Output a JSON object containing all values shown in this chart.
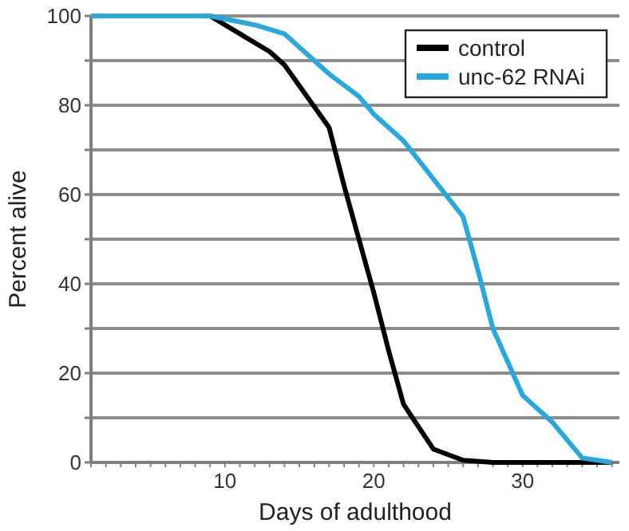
{
  "chart_data": {
    "type": "line",
    "xlabel": "Days of adulthood",
    "ylabel": "Percent alive",
    "xlim": [
      1,
      36.5
    ],
    "xticks": [
      {
        "value": 1,
        "label": null
      },
      {
        "value": 2,
        "label": null
      },
      {
        "value": 3,
        "label": null
      },
      {
        "value": 4,
        "label": null
      },
      {
        "value": 5,
        "label": null
      },
      {
        "value": 6,
        "label": null
      },
      {
        "value": 7,
        "label": null
      },
      {
        "value": 8,
        "label": null
      },
      {
        "value": 9,
        "label": null
      },
      10,
      {
        "value": 11,
        "label": null
      },
      {
        "value": 12,
        "label": null
      },
      {
        "value": 13,
        "label": null
      },
      {
        "value": 14,
        "label": null
      },
      {
        "value": 15,
        "label": null
      },
      {
        "value": 16,
        "label": null
      },
      {
        "value": 17,
        "label": null
      },
      {
        "value": 18,
        "label": null
      },
      {
        "value": 19,
        "label": null
      },
      20,
      {
        "value": 21,
        "label": null
      },
      {
        "value": 22,
        "label": null
      },
      {
        "value": 23,
        "label": null
      },
      {
        "value": 24,
        "label": null
      },
      {
        "value": 25,
        "label": null
      },
      {
        "value": 26,
        "label": null
      },
      {
        "value": 27,
        "label": null
      },
      {
        "value": 28,
        "label": null
      },
      {
        "value": 29,
        "label": null
      },
      30,
      {
        "value": 31,
        "label": null
      },
      {
        "value": 32,
        "label": null
      },
      {
        "value": 33,
        "label": null
      },
      {
        "value": 34,
        "label": null
      },
      {
        "value": 35,
        "label": null
      },
      {
        "value": 36,
        "label": null
      }
    ],
    "ylim": [
      0,
      100
    ],
    "yticks": [
      0,
      {
        "value": 10,
        "label": null
      },
      20,
      {
        "value": 30,
        "label": null
      },
      40,
      {
        "value": 50,
        "label": null
      },
      60,
      {
        "value": 70,
        "label": null
      },
      80,
      {
        "value": 90,
        "label": null
      },
      100
    ],
    "grid": "y",
    "legend": "top right",
    "marker": "none",
    "line_style": "solid",
    "series": [
      {
        "name": "control",
        "color": "#000000",
        "x": [
          1,
          9,
          11,
          13,
          14,
          17,
          18,
          19,
          20,
          21,
          22,
          24,
          26,
          28,
          36
        ],
        "values": [
          100,
          100,
          96,
          92,
          89,
          75,
          62,
          50,
          38,
          25,
          13,
          3,
          0.5,
          0,
          0
        ]
      },
      {
        "name": "unc-62 RNAi",
        "color": "#29a8e0",
        "x": [
          1,
          9,
          12,
          14,
          16,
          17,
          19,
          20,
          22,
          26,
          27,
          28,
          30,
          32,
          34,
          36
        ],
        "values": [
          100,
          100,
          98,
          96,
          90,
          87,
          82,
          78,
          72,
          55,
          43,
          30,
          15,
          9,
          1,
          0
        ]
      }
    ]
  }
}
